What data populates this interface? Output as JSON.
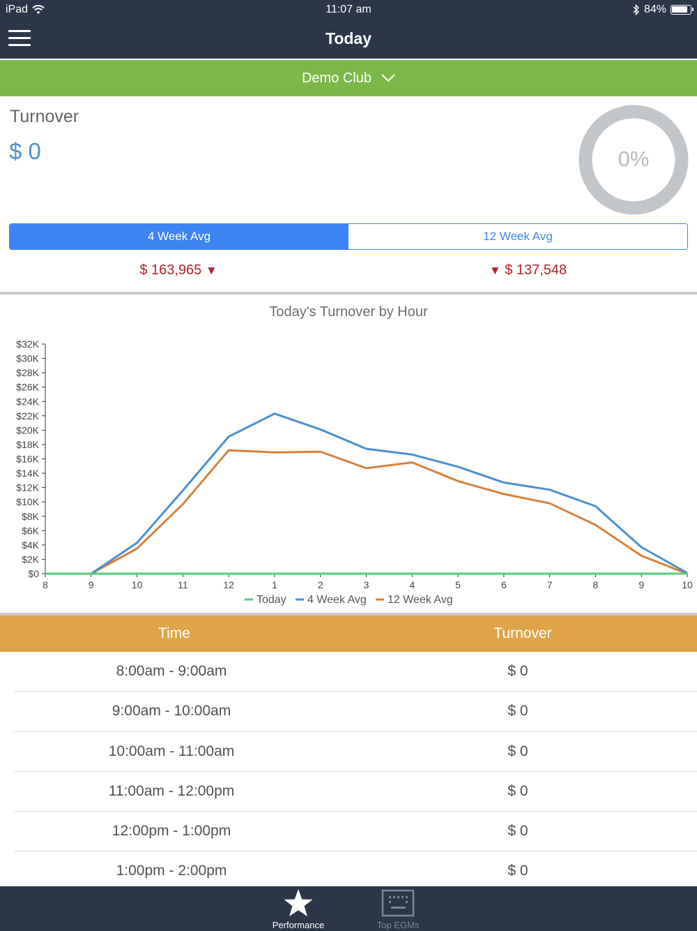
{
  "status_bar": {
    "device": "iPad",
    "time": "11:07 am",
    "battery": "84%"
  },
  "nav": {
    "title": "Today"
  },
  "club_selector": {
    "label": "Demo Club"
  },
  "turnover": {
    "label": "Turnover",
    "value": "$ 0",
    "percent": "0%",
    "percent_value": 0
  },
  "segments": [
    {
      "label": "4 Week Avg",
      "active": true
    },
    {
      "label": "12 Week Avg",
      "active": false
    }
  ],
  "averages": {
    "four_week": "$ 163,965",
    "twelve_week": "$ 137,548"
  },
  "colors": {
    "nav_bg": "#2b3649",
    "club_bar": "#7bb84a",
    "accent_blue": "#3d84f2",
    "negative_red": "#b0222a",
    "table_header": "#dfa447",
    "series_today": "#5cc77a",
    "series_4wk": "#4a8fd3",
    "series_12wk": "#d8813a"
  },
  "chart_data": {
    "type": "line",
    "title": "Today's Turnover by Hour",
    "x": [
      "8",
      "9",
      "10",
      "11",
      "12",
      "1",
      "2",
      "3",
      "4",
      "5",
      "6",
      "7",
      "8",
      "9",
      "10"
    ],
    "y_ticks": [
      "$0",
      "$2K",
      "$4K",
      "$6K",
      "$8K",
      "$10K",
      "$12K",
      "$14K",
      "$16K",
      "$18K",
      "$20K",
      "$22K",
      "$24K",
      "$26K",
      "$28K",
      "$30K",
      "$32K"
    ],
    "ylim": [
      0,
      32000
    ],
    "legend_position": "bottom",
    "series": [
      {
        "name": "Today",
        "color": "#5cc77a",
        "values": [
          0,
          0,
          0,
          0,
          0,
          0,
          0,
          0,
          0,
          0,
          0,
          0,
          0,
          0,
          0
        ]
      },
      {
        "name": "4 Week Avg",
        "color": "#4a8fd3",
        "values": [
          0,
          0,
          4300,
          11600,
          19100,
          22300,
          20100,
          17400,
          16600,
          14900,
          12700,
          11700,
          9400,
          3700,
          100
        ]
      },
      {
        "name": "12 Week Avg",
        "color": "#d8813a",
        "values": [
          0,
          0,
          3500,
          9700,
          17200,
          16900,
          17000,
          14700,
          15500,
          12900,
          11100,
          9800,
          6800,
          2500,
          0
        ]
      }
    ]
  },
  "table": {
    "headers": {
      "time": "Time",
      "turnover": "Turnover"
    },
    "rows": [
      {
        "time": "8:00am - 9:00am",
        "turnover": "$ 0"
      },
      {
        "time": "9:00am - 10:00am",
        "turnover": "$ 0"
      },
      {
        "time": "10:00am - 11:00am",
        "turnover": "$ 0"
      },
      {
        "time": "11:00am - 12:00pm",
        "turnover": "$ 0"
      },
      {
        "time": "12:00pm - 1:00pm",
        "turnover": "$ 0"
      },
      {
        "time": "1:00pm - 2:00pm",
        "turnover": "$ 0"
      }
    ]
  },
  "tabbar": {
    "items": [
      {
        "label": "Performance",
        "icon": "star-icon",
        "active": true
      },
      {
        "label": "Top EGMs",
        "icon": "egm-icon",
        "active": false
      }
    ]
  }
}
